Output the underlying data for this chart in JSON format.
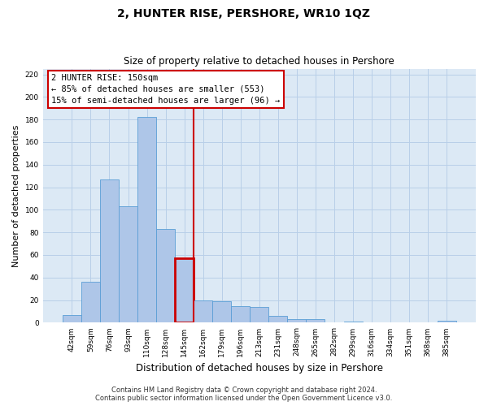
{
  "title": "2, HUNTER RISE, PERSHORE, WR10 1QZ",
  "subtitle": "Size of property relative to detached houses in Pershore",
  "xlabel": "Distribution of detached houses by size in Pershore",
  "ylabel": "Number of detached properties",
  "bar_labels": [
    "42sqm",
    "59sqm",
    "76sqm",
    "93sqm",
    "110sqm",
    "128sqm",
    "145sqm",
    "162sqm",
    "179sqm",
    "196sqm",
    "213sqm",
    "231sqm",
    "248sqm",
    "265sqm",
    "282sqm",
    "299sqm",
    "316sqm",
    "334sqm",
    "351sqm",
    "368sqm",
    "385sqm"
  ],
  "bar_values": [
    7,
    36,
    127,
    103,
    182,
    83,
    57,
    20,
    19,
    15,
    14,
    6,
    3,
    3,
    0,
    1,
    0,
    0,
    0,
    0,
    2
  ],
  "bar_color": "#aec6e8",
  "bar_edge_color": "#5a9ed6",
  "highlight_bar_index": 6,
  "highlight_color": "#cc0000",
  "vline_x": 6.5,
  "ylim": [
    0,
    225
  ],
  "yticks": [
    0,
    20,
    40,
    60,
    80,
    100,
    120,
    140,
    160,
    180,
    200,
    220
  ],
  "annotation_title": "2 HUNTER RISE: 150sqm",
  "annotation_line1": "← 85% of detached houses are smaller (553)",
  "annotation_line2": "15% of semi-detached houses are larger (96) →",
  "annotation_box_color": "#ffffff",
  "annotation_box_edge": "#cc0000",
  "footer_line1": "Contains HM Land Registry data © Crown copyright and database right 2024.",
  "footer_line2": "Contains public sector information licensed under the Open Government Licence v3.0.",
  "bg_color": "#ffffff",
  "plot_bg_color": "#dce9f5",
  "grid_color": "#b8cfe8",
  "fig_width": 6.0,
  "fig_height": 5.0,
  "dpi": 100
}
